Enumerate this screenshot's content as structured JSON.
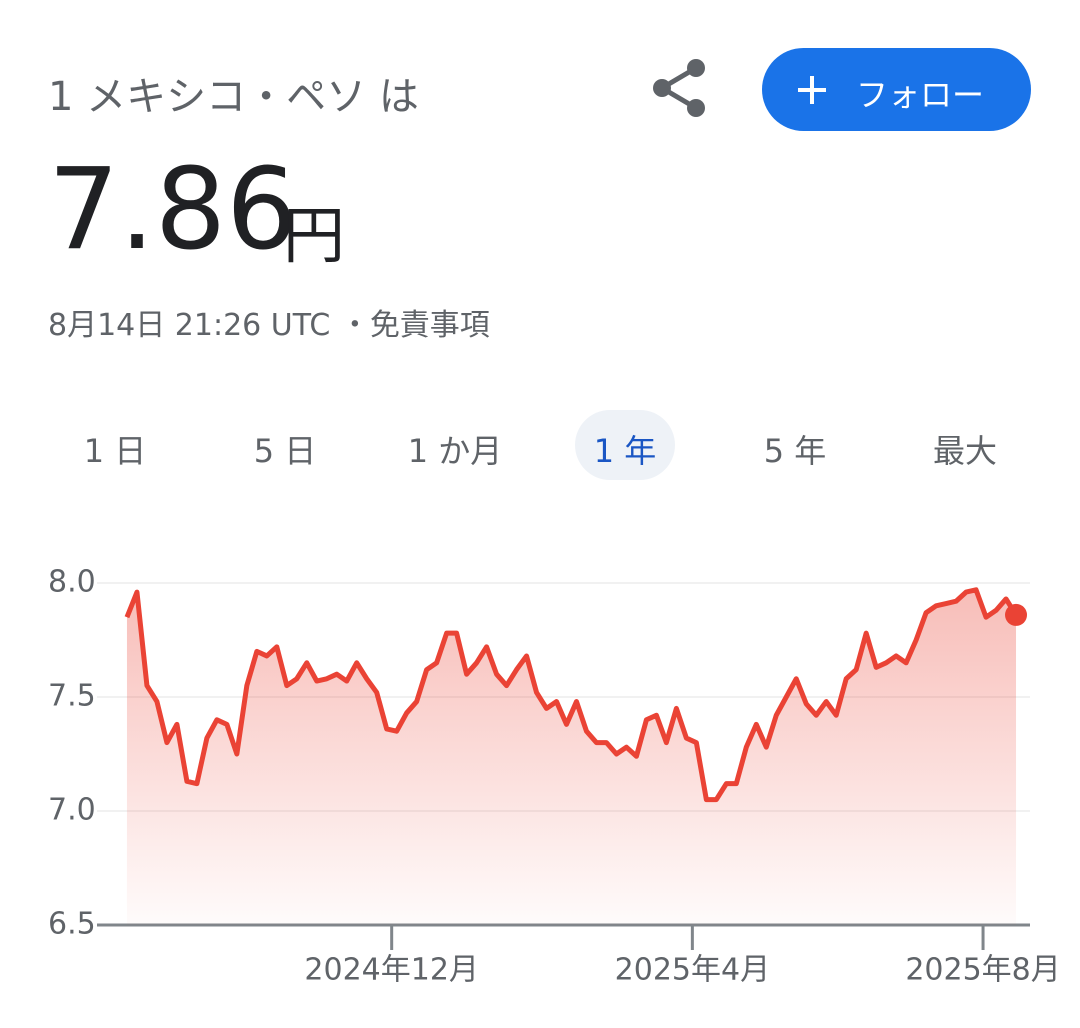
{
  "header": {
    "title": "1 メキシコ・ペソ は",
    "price": "7.86",
    "unit": "円",
    "timestamp": "8月14日 21:26 UTC",
    "separator": "・",
    "disclaimer": "免責事項",
    "follow": "フォロー"
  },
  "tabs": [
    "1 日",
    "5 日",
    "1 か月",
    "1 年",
    "5 年",
    "最大"
  ],
  "selected_tab": 3,
  "chart_data": {
    "type": "line",
    "series": [
      {
        "color": "#ea4335",
        "values": [
          7.85,
          7.96,
          7.55,
          7.48,
          7.3,
          7.38,
          7.13,
          7.12,
          7.32,
          7.4,
          7.38,
          7.25,
          7.55,
          7.7,
          7.68,
          7.72,
          7.55,
          7.58,
          7.65,
          7.57,
          7.58,
          7.6,
          7.57,
          7.65,
          7.58,
          7.52,
          7.36,
          7.35,
          7.43,
          7.48,
          7.62,
          7.65,
          7.78,
          7.78,
          7.6,
          7.65,
          7.72,
          7.6,
          7.55,
          7.62,
          7.68,
          7.52,
          7.45,
          7.48,
          7.38,
          7.48,
          7.35,
          7.3,
          7.3,
          7.25,
          7.28,
          7.24,
          7.4,
          7.42,
          7.3,
          7.45,
          7.32,
          7.3,
          7.05,
          7.05,
          7.12,
          7.12,
          7.28,
          7.38,
          7.28,
          7.42,
          7.5,
          7.58,
          7.47,
          7.42,
          7.48,
          7.42,
          7.58,
          7.62,
          7.78,
          7.63,
          7.65,
          7.68,
          7.65,
          7.75,
          7.87,
          7.9,
          7.91,
          7.92,
          7.96,
          7.97,
          7.85,
          7.88,
          7.93,
          7.86
        ]
      }
    ],
    "xlim": [
      -3,
      90.4
    ],
    "xticks": [
      {
        "value": 26.5,
        "label": "2024年12月"
      },
      {
        "value": 56.6,
        "label": "2025年4月"
      },
      {
        "value": 85.7,
        "label": "2025年8月"
      }
    ],
    "ylim": [
      6.5,
      8.0
    ],
    "yticks": [
      {
        "value": 8.0,
        "label": "8.0"
      },
      {
        "value": 7.5,
        "label": "7.5"
      },
      {
        "value": 7.0,
        "label": "7.0"
      },
      {
        "value": 6.5,
        "label": "6.5"
      }
    ],
    "grid": true
  }
}
